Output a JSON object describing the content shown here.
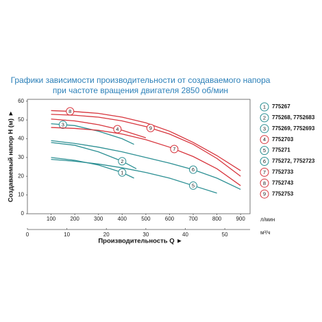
{
  "chart_data": {
    "type": "line",
    "title_lines": [
      "Графики зависимости производительности от создаваемого напора",
      "при частоте вращения двигателя 2850 об/мин"
    ],
    "y_label": "Создаваемый напор Н (м) ►",
    "x_label": "Производительность Q ►",
    "x_unit": "л/мин",
    "x2_unit": "м³/ч",
    "xlim": [
      0,
      940
    ],
    "xticks": [
      100,
      200,
      300,
      400,
      500,
      600,
      700,
      800,
      900
    ],
    "x2lim": [
      0,
      56.4
    ],
    "x2ticks": [
      0,
      10,
      20,
      30,
      40,
      50
    ],
    "ylim": [
      0,
      61
    ],
    "yticks": [
      0,
      10,
      20,
      30,
      40,
      50,
      60
    ],
    "grid": false,
    "series": [
      {
        "label": "1",
        "name": "775267",
        "color": "#2b8f93",
        "x": [
          100,
          200,
          300,
          400,
          450
        ],
        "values": [
          30,
          28.5,
          26,
          22,
          19
        ]
      },
      {
        "label": "2",
        "name": "775268, 7752683",
        "color": "#2b8f93",
        "x": [
          100,
          200,
          300,
          400,
          460
        ],
        "values": [
          38,
          36.5,
          33,
          28,
          24
        ]
      },
      {
        "label": "3",
        "name": "775269, 7752693",
        "color": "#2b8f93",
        "x": [
          100,
          200,
          300,
          400,
          450
        ],
        "values": [
          48,
          47,
          44,
          40,
          37
        ]
      },
      {
        "label": "4",
        "name": "7752703",
        "color": "#d7343c",
        "x": [
          100,
          200,
          300,
          400,
          500
        ],
        "values": [
          50.5,
          49.5,
          47.5,
          44.5,
          40.5
        ]
      },
      {
        "label": "5",
        "name": "775271",
        "color": "#2b8f93",
        "x": [
          100,
          200,
          300,
          400,
          500,
          600,
          700,
          800
        ],
        "values": [
          29,
          28,
          26.5,
          24.5,
          22,
          19,
          15,
          11
        ]
      },
      {
        "label": "6",
        "name": "775272, 7752723",
        "color": "#2b8f93",
        "x": [
          100,
          200,
          300,
          400,
          500,
          600,
          700,
          800,
          900
        ],
        "values": [
          39,
          37.5,
          35.5,
          33,
          30,
          27,
          23.5,
          19,
          13
        ]
      },
      {
        "label": "7",
        "name": "7752733",
        "color": "#d7343c",
        "x": [
          100,
          200,
          300,
          400,
          500,
          600,
          700,
          800,
          900
        ],
        "values": [
          46,
          45.5,
          44.5,
          42.5,
          39.5,
          35.5,
          30.5,
          24,
          15
        ]
      },
      {
        "label": "8",
        "name": "7752743",
        "color": "#d7343c",
        "x": [
          100,
          200,
          300,
          400,
          500,
          600,
          700,
          800,
          900
        ],
        "values": [
          55,
          54.5,
          53.5,
          51.5,
          48.5,
          44,
          38,
          31,
          23
        ]
      },
      {
        "label": "9",
        "name": "7752753",
        "color": "#d7343c",
        "x": [
          100,
          200,
          300,
          400,
          500,
          600,
          700,
          800,
          900
        ],
        "values": [
          53,
          52.5,
          51.5,
          49.5,
          46.5,
          42.5,
          37,
          29.5,
          20
        ]
      }
    ]
  }
}
